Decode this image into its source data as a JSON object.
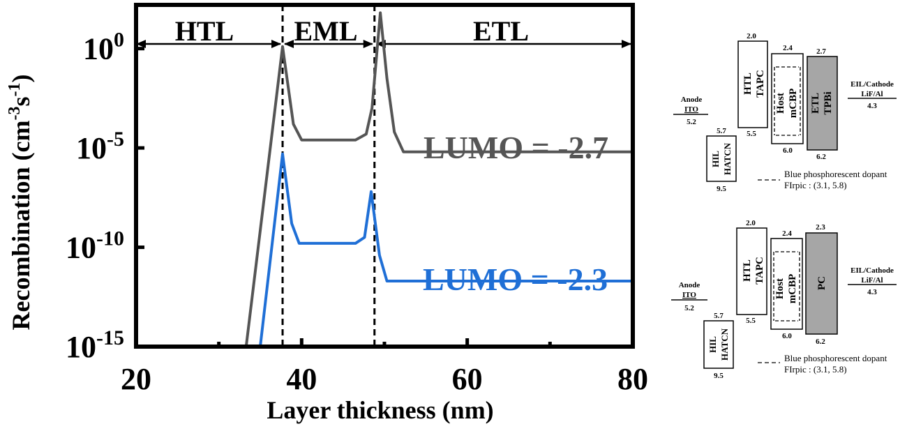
{
  "colors": {
    "gray": "#555555",
    "blue": "#1f6fd6",
    "etl_fill": "#a6a6a6"
  },
  "chart_data": {
    "type": "line",
    "xlabel": "Layer thickness (nm)",
    "ylabel": "Recombination (cm-3s-1)",
    "ylabel_parts": {
      "main": "Recombination (cm",
      "sup1": "-3",
      "mid": "s",
      "sup2": "-1",
      "end": ")"
    },
    "xlim": [
      20,
      80
    ],
    "ylim_log10": [
      -15,
      2.2
    ],
    "y_scale": "log",
    "x_ticks": [
      20,
      40,
      60,
      80
    ],
    "x_minor_ticks": [
      30,
      50,
      70
    ],
    "y_ticks": [
      {
        "base": "10",
        "exp": "0",
        "value": 0
      },
      {
        "base": "10",
        "exp": "-5",
        "value": -5
      },
      {
        "base": "10",
        "exp": "-10",
        "value": -10
      },
      {
        "base": "10",
        "exp": "-15",
        "value": -15
      }
    ],
    "regions": [
      {
        "label": "HTL",
        "from": 20,
        "to": 37.7
      },
      {
        "label": "EML",
        "from": 37.7,
        "to": 48.8
      },
      {
        "label": "ETL",
        "from": 48.8,
        "to": 80
      }
    ],
    "boundaries": [
      37.7,
      48.8
    ],
    "series": [
      {
        "name": "LUMO = -2.7",
        "color": "#555555",
        "x": [
          33.3,
          37.7,
          39.0,
          40.0,
          42.0,
          44.0,
          46.5,
          47.8,
          48.5,
          49.5,
          50.3,
          51.2,
          52.3,
          80.0
        ],
        "log10_y": [
          -15,
          0.1,
          -3.8,
          -4.6,
          -4.6,
          -4.6,
          -4.6,
          -4.3,
          -3.0,
          1.8,
          -1.5,
          -4.2,
          -5.2,
          -5.2
        ]
      },
      {
        "name": "LUMO = -2.3",
        "color": "#1f6fd6",
        "x": [
          35.0,
          37.7,
          38.8,
          39.7,
          42.0,
          44.0,
          46.5,
          47.6,
          48.4,
          49.4,
          50.3,
          80.0
        ],
        "log10_y": [
          -15,
          -5.3,
          -8.8,
          -9.8,
          -9.8,
          -9.8,
          -9.8,
          -9.5,
          -7.2,
          -10.4,
          -11.7,
          -11.7
        ]
      }
    ]
  },
  "diagrams": [
    {
      "anode": {
        "top": "Anode",
        "mid": "ITO",
        "value": "5.2"
      },
      "hil": {
        "top": "5.7",
        "name1": "HIL",
        "name2": "HATCN",
        "bottom": "9.5"
      },
      "htl": {
        "top": "2.0",
        "name1": "HTL",
        "name2": "TAPC",
        "bottom": "5.5"
      },
      "host": {
        "top": "2.4",
        "name1": "Host",
        "name2": "mCBP",
        "bottom": "6.0"
      },
      "etl": {
        "top": "2.7",
        "name1": "ETL",
        "name2": "TPBi",
        "bottom": "6.2"
      },
      "cathode": {
        "top": "EIL/Cathode",
        "mid": "LiF/Al",
        "value": "4.3"
      },
      "dopant": {
        "line1": "Blue phosphorescent dopant",
        "line2": "FIrpic : (3.1, 5.8)"
      }
    },
    {
      "anode": {
        "top": "Anode",
        "mid": "ITO",
        "value": "5.2"
      },
      "hil": {
        "top": "5.7",
        "name1": "HIL",
        "name2": "HATCN",
        "bottom": "9.5"
      },
      "htl": {
        "top": "2.0",
        "name1": "HTL",
        "name2": "TAPC",
        "bottom": "5.5"
      },
      "host": {
        "top": "2.4",
        "name1": "Host",
        "name2": "mCBP",
        "bottom": "6.0"
      },
      "etl": {
        "top": "2.3",
        "name1": "PC",
        "bottom": "6.2"
      },
      "cathode": {
        "top": "EIL/Cathode",
        "mid": "LiF/Al",
        "value": "4.3"
      },
      "dopant": {
        "line1": "Blue phosphorescent dopant",
        "line2": "FIrpic : (3.1, 5.8)"
      }
    }
  ]
}
